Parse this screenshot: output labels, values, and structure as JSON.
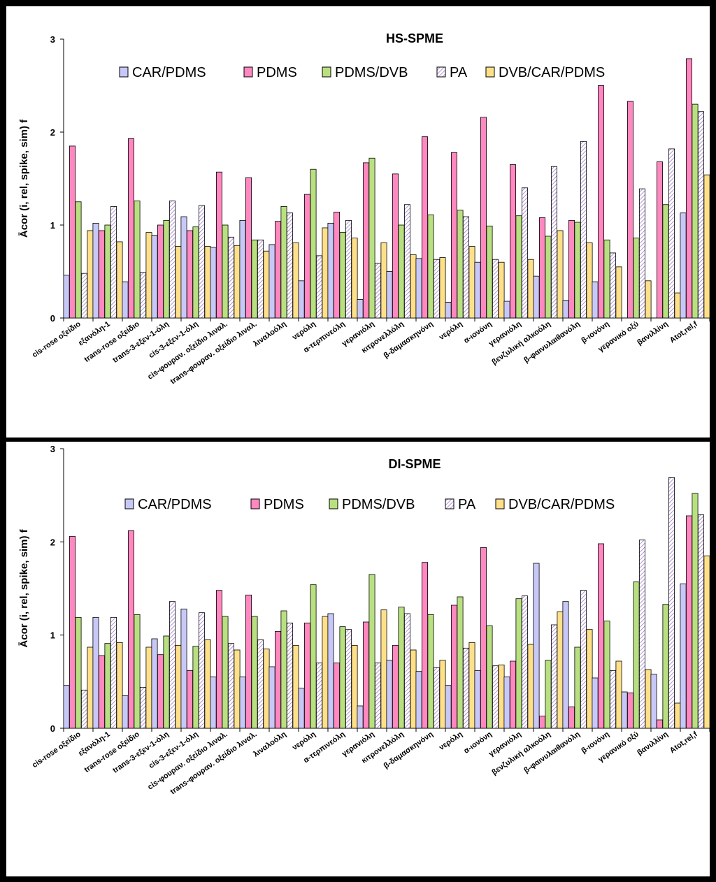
{
  "colors": {
    "CAR/PDMS": "#c8c8f8",
    "PDMS": "#ff88c0",
    "PDMS/DVB": "#b8e080",
    "PA": "#e6d0f0",
    "DVB/CAR/PDMS": "#ffe08a"
  },
  "chart_data": [
    {
      "type": "bar",
      "title": "HS-SPME",
      "ylabel": "Ācor (i, rel, spike, sim) f",
      "ylim": [
        0,
        3
      ],
      "yticks": [
        "0",
        "1",
        "2",
        "3"
      ],
      "legend_position": "top",
      "categories": [
        "cis-rose οξείδιο",
        "εξανόλη-1",
        "trans-rose οξείδιο",
        "trans-3-εξεν-1-όλη",
        "cis-3-εξεν-1-όλη",
        "cis-φουραν. οξείδιο λιναλ.",
        "trans-φουραν. οξείδιο λιναλ.",
        "λιναλοόλη",
        "νερόλη",
        "α-τερπινεόλη",
        "γερανιόλη",
        "κιτρονελλόλη",
        "β-δαμασκηνόνη",
        "νερόλη",
        "α-ιονόνη",
        "γερανιόλη",
        "βενζυλική αλκοόλη",
        "β-φαινυλαιθανόλη",
        "β-ιονόνη",
        "γερανικό οξύ",
        "βανιλλίνη",
        "Atot,rel,f"
      ],
      "series": [
        {
          "name": "CAR/PDMS",
          "values": [
            0.46,
            1.02,
            0.39,
            0.89,
            1.09,
            0.76,
            1.05,
            0.79,
            0.4,
            1.02,
            0.2,
            0.5,
            0.64,
            0.17,
            0.6,
            0.18,
            0.45,
            0.19,
            0.39,
            0,
            0,
            1.13
          ]
        },
        {
          "name": "PDMS",
          "values": [
            1.85,
            0.94,
            1.93,
            1.0,
            0.94,
            1.57,
            1.51,
            1.04,
            1.33,
            1.14,
            1.67,
            1.55,
            1.95,
            1.78,
            2.16,
            1.65,
            1.08,
            1.05,
            2.5,
            2.33,
            1.68,
            2.79
          ]
        },
        {
          "name": "PDMS/DVB",
          "values": [
            1.25,
            1.0,
            1.26,
            1.05,
            0.98,
            1.0,
            0.84,
            1.2,
            1.6,
            0.92,
            1.72,
            1.0,
            1.11,
            1.16,
            0.99,
            1.1,
            0.88,
            1.03,
            0.84,
            0.86,
            1.22,
            2.3
          ]
        },
        {
          "name": "PA",
          "values": [
            0.48,
            1.2,
            0.49,
            1.26,
            1.21,
            0.87,
            0.84,
            1.13,
            0.67,
            1.05,
            0.59,
            1.22,
            0.63,
            1.09,
            0.63,
            1.4,
            1.63,
            1.9,
            0.7,
            1.39,
            1.82,
            2.22
          ]
        },
        {
          "name": "DVB/CAR/PDMS",
          "values": [
            0.94,
            0.82,
            0.92,
            0.77,
            0.77,
            0.78,
            0.72,
            0.81,
            0.97,
            0.86,
            0.81,
            0.68,
            0.65,
            0.77,
            0.6,
            0.63,
            0.94,
            0.81,
            0.55,
            0.4,
            0.27,
            1.54
          ]
        }
      ]
    },
    {
      "type": "bar",
      "title": "DI-SPME",
      "ylabel": "Ācor (i, rel, spike, sim) f",
      "ylim": [
        0,
        3
      ],
      "yticks": [
        "0",
        "1",
        "2",
        "3"
      ],
      "legend_position": "top",
      "categories": [
        "cis-rose οξείδιο",
        "εξανόλη-1",
        "trans-rose οξείδιο",
        "trans-3-εξεν-1-όλη",
        "cis-3-εξεν-1-όλη",
        "cis-φουραν. οξείδιο λιναλ.",
        "trans-φουραν. οξείδιο λιναλ.",
        "λιναλοόλη",
        "νερόλη",
        "α-τερπινεόλη",
        "γερανιόλη",
        "κιτρονελλόλη",
        "β-δαμασκηνόνη",
        "νερόλη",
        "α-ιονόνη",
        "γερανιόλη",
        "βενζυλική αλκοόλη",
        "β-φαινυλαιθανόλη",
        "β-ιονόνη",
        "γερανικό οξύ",
        "βανιλλίνη",
        "Atot,rel,f"
      ],
      "series": [
        {
          "name": "CAR/PDMS",
          "values": [
            0.46,
            1.19,
            0.35,
            0.96,
            1.28,
            0.55,
            0.55,
            0.66,
            0.43,
            1.23,
            0.24,
            0.73,
            0.61,
            0.46,
            0.62,
            0.55,
            1.77,
            1.36,
            0.54,
            0.39,
            0.58,
            1.55
          ]
        },
        {
          "name": "PDMS",
          "values": [
            2.06,
            0.78,
            2.12,
            0.79,
            0.62,
            1.48,
            1.43,
            1.04,
            1.13,
            0.7,
            1.14,
            0.89,
            1.78,
            1.32,
            1.94,
            0.72,
            0.13,
            0.23,
            1.98,
            0.38,
            0.09,
            2.28
          ]
        },
        {
          "name": "PDMS/DVB",
          "values": [
            1.19,
            0.91,
            1.22,
            0.99,
            0.88,
            1.2,
            1.2,
            1.26,
            1.54,
            1.09,
            1.65,
            1.3,
            1.22,
            1.41,
            1.1,
            1.39,
            0.73,
            0.87,
            1.15,
            1.57,
            1.33,
            2.52
          ]
        },
        {
          "name": "PA",
          "values": [
            0.41,
            1.19,
            0.44,
            1.36,
            1.24,
            0.91,
            0.95,
            1.13,
            0.7,
            1.06,
            0.7,
            1.23,
            0.65,
            0.86,
            0.67,
            1.42,
            1.11,
            1.48,
            0.62,
            2.02,
            2.69,
            2.29
          ]
        },
        {
          "name": "DVB/CAR/PDMS",
          "values": [
            0.87,
            0.92,
            0.87,
            0.89,
            0.95,
            0.84,
            0.85,
            0.89,
            1.2,
            0.89,
            1.27,
            0.84,
            0.73,
            0.92,
            0.68,
            0.9,
            1.25,
            1.06,
            0.72,
            0.63,
            0.27,
            1.85
          ]
        }
      ]
    }
  ]
}
